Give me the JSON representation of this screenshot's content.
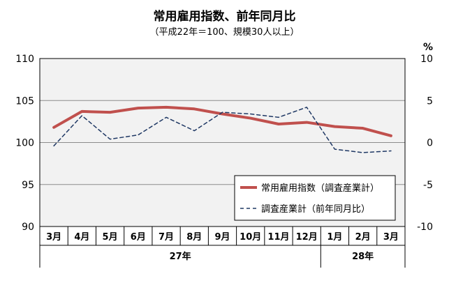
{
  "title": "常用雇用指数、前年同月比",
  "subtitle": "（平成22年＝100、規模30人以上）",
  "chart_data": {
    "type": "line",
    "categories": [
      "3月",
      "4月",
      "5月",
      "6月",
      "7月",
      "8月",
      "9月",
      "10月",
      "11月",
      "12月",
      "1月",
      "2月",
      "3月"
    ],
    "year_groups": [
      {
        "label": "27年",
        "from": 0,
        "to": 9
      },
      {
        "label": "28年",
        "from": 10,
        "to": 12
      }
    ],
    "left_axis": {
      "min": 90,
      "max": 110,
      "step": 5,
      "ticks": [
        "90",
        "95",
        "100",
        "105",
        "110"
      ]
    },
    "right_axis": {
      "min": -10,
      "max": 10,
      "step": 5,
      "ticks": [
        "-10",
        "-5",
        "0",
        "5",
        "10"
      ],
      "unit": "%"
    },
    "series": [
      {
        "name": "常用雇用指数（調査産業計）",
        "axis": "left",
        "color": "#c0504d",
        "style": "solid",
        "values": [
          101.8,
          103.7,
          103.6,
          104.1,
          104.2,
          104.0,
          103.4,
          102.9,
          102.2,
          102.4,
          101.9,
          101.7,
          100.8
        ]
      },
      {
        "name": "調査産業計（前年同月比）",
        "axis": "right",
        "color": "#1f3864",
        "style": "dashed",
        "values": [
          -0.4,
          3.2,
          0.4,
          0.9,
          3.0,
          1.4,
          3.6,
          3.4,
          3.0,
          4.2,
          -0.8,
          -1.2,
          -1.0
        ]
      }
    ],
    "grid": true
  }
}
